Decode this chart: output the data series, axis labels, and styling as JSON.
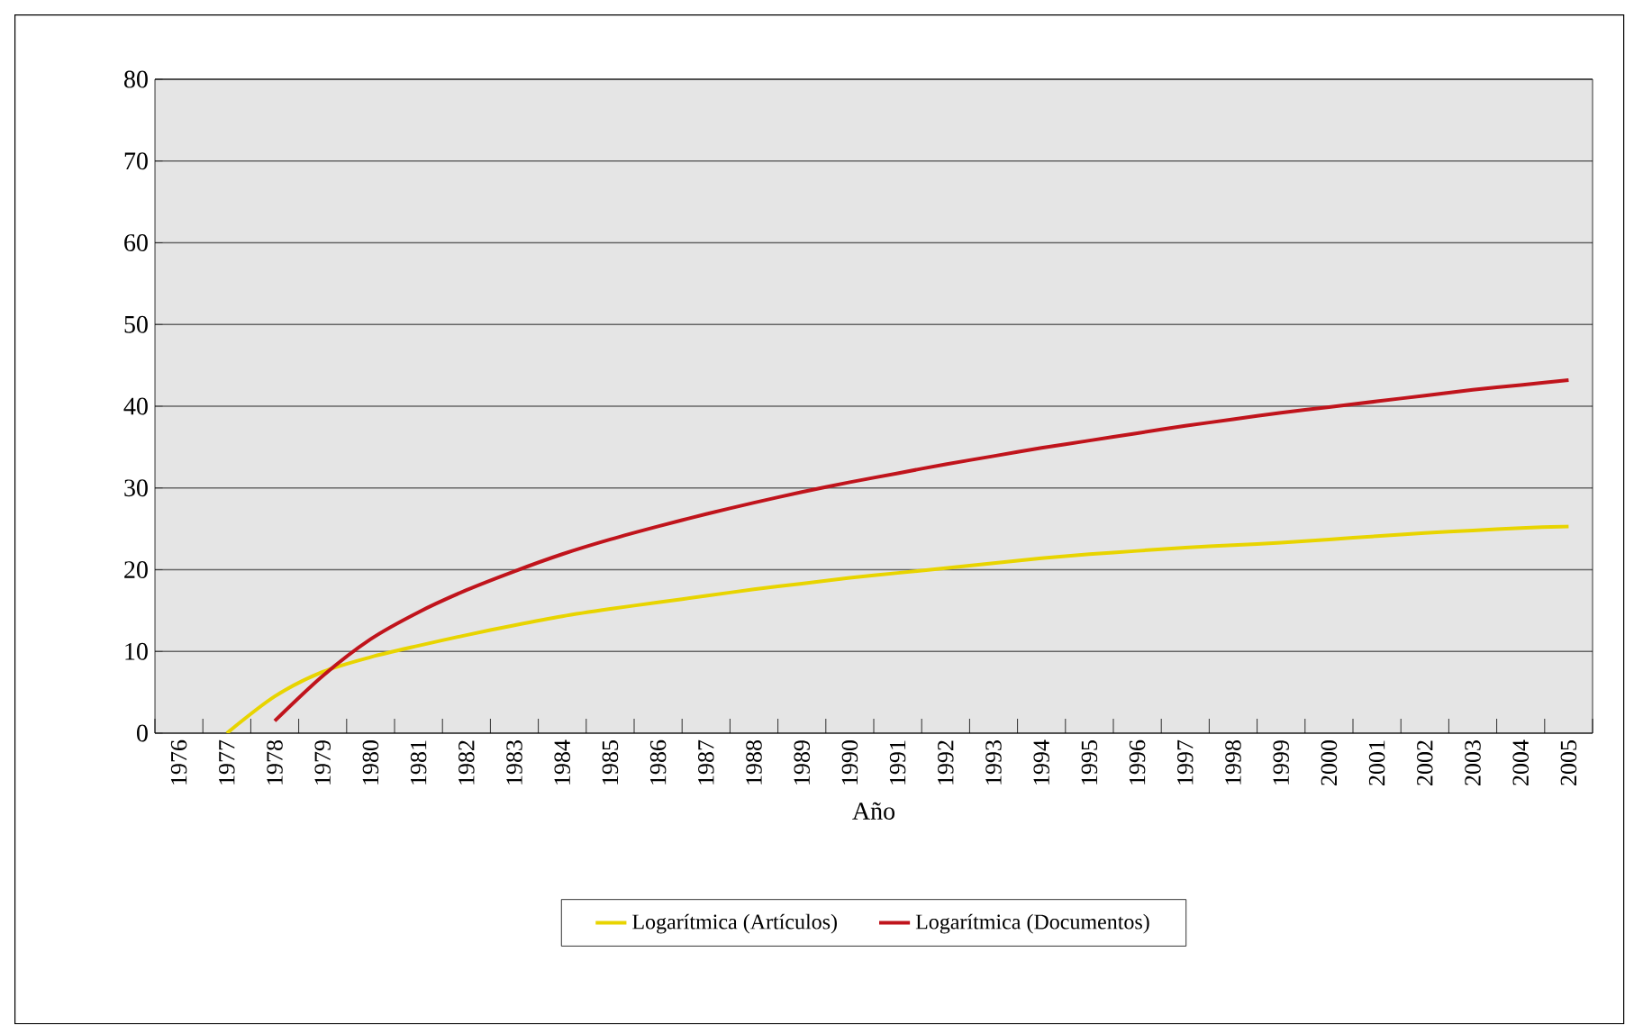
{
  "chart_data": {
    "type": "line",
    "xlabel": "Año",
    "categories": [
      "1976",
      "1977",
      "1978",
      "1979",
      "1980",
      "1981",
      "1982",
      "1983",
      "1984",
      "1985",
      "1986",
      "1987",
      "1988",
      "1989",
      "1990",
      "1991",
      "1992",
      "1993",
      "1994",
      "1995",
      "1996",
      "1997",
      "1998",
      "1999",
      "2000",
      "2001",
      "2002",
      "2003",
      "2004",
      "2005"
    ],
    "series": [
      {
        "name": "Logarítmica (Artículos)",
        "color": "#e8d400",
        "values": [
          null,
          0,
          4.5,
          7.5,
          9.3,
          10.7,
          12,
          13.2,
          14.3,
          15.2,
          16,
          16.8,
          17.6,
          18.3,
          19,
          19.6,
          20.2,
          20.8,
          21.4,
          21.9,
          22.3,
          22.7,
          23,
          23.3,
          23.7,
          24.1,
          24.5,
          24.8,
          25.1,
          25.3
        ]
      },
      {
        "name": "Logarítmica (Documentos)",
        "color": "#c0141c",
        "values": [
          null,
          null,
          1.5,
          7,
          11.5,
          14.8,
          17.5,
          19.8,
          21.9,
          23.7,
          25.3,
          26.8,
          28.2,
          29.5,
          30.7,
          31.8,
          32.9,
          33.9,
          34.9,
          35.8,
          36.7,
          37.6,
          38.4,
          39.2,
          39.9,
          40.6,
          41.3,
          42,
          42.6,
          43.2
        ]
      }
    ],
    "ylim": [
      0,
      80
    ],
    "yticks": [
      0,
      10,
      20,
      30,
      40,
      50,
      60,
      70,
      80
    ],
    "grid": "y",
    "legend": "bottom",
    "marker": "none",
    "line_style": "solid"
  }
}
